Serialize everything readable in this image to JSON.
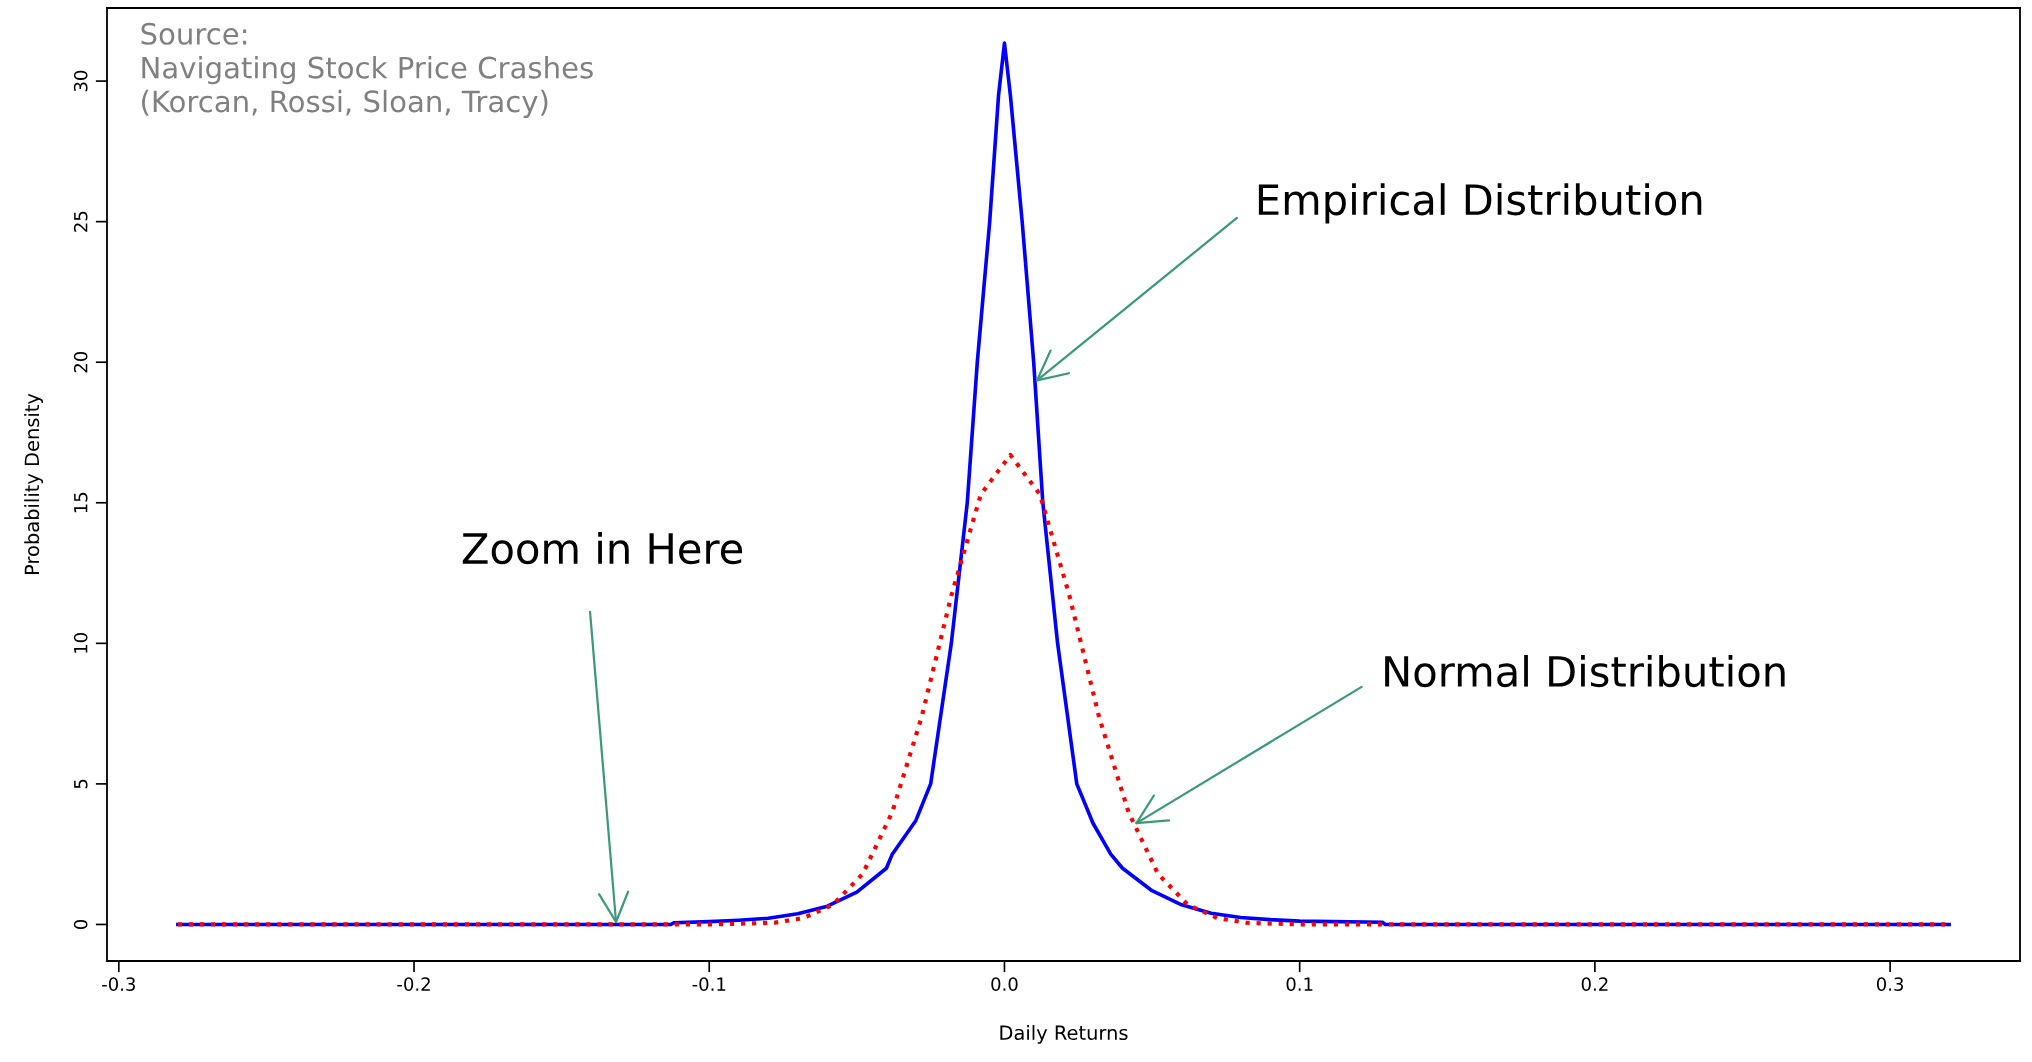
{
  "chart_data": {
    "type": "line",
    "xlabel": "Daily Returns",
    "ylabel": "Probability Density",
    "xlim": [
      -0.304,
      0.344
    ],
    "ylim": [
      -1.3,
      32.6
    ],
    "xticks": [
      -0.3,
      -0.2,
      -0.1,
      {
        "value": 0,
        "label": "0.0"
      },
      0.1,
      0.2,
      0.3
    ],
    "yticks": [
      0,
      5,
      10,
      15,
      20,
      25,
      30
    ],
    "grid": false,
    "series": [
      {
        "color": "#0000ff",
        "line_style": "solid",
        "x": [
          -0.28,
          -0.113,
          -0.112,
          -0.1,
          -0.09,
          -0.08,
          -0.07,
          -0.06,
          -0.05,
          -0.04,
          -0.038,
          -0.03,
          -0.025,
          -0.018,
          -0.0126,
          -0.0092,
          -0.005,
          -0.002,
          0.0,
          0.002,
          0.006,
          0.0099,
          0.013,
          0.018,
          0.0245,
          0.03,
          0.036,
          0.04,
          0.05,
          0.06,
          0.07,
          0.08,
          0.09,
          0.1,
          0.128,
          0.129,
          0.32
        ],
        "values": [
          0,
          0,
          0.06,
          0.1,
          0.15,
          0.22,
          0.38,
          0.65,
          1.15,
          2.0,
          2.5,
          3.7,
          5,
          10,
          15,
          20,
          25,
          29.5,
          31.35,
          29.5,
          25,
          20,
          15,
          10,
          5,
          3.6,
          2.5,
          2.0,
          1.2,
          0.7,
          0.4,
          0.25,
          0.17,
          0.12,
          0.08,
          0,
          0
        ]
      },
      {
        "color": "#ff0000",
        "line_style": "dotted",
        "x": [
          -0.28,
          -0.1,
          -0.078,
          -0.068,
          -0.058,
          -0.048,
          -0.038,
          -0.028,
          -0.018,
          -0.008,
          0.002,
          0.012,
          0.022,
          0.032,
          0.042,
          0.052,
          0.062,
          0.072,
          0.082,
          0.1,
          0.32
        ],
        "values": [
          0,
          0,
          0.06,
          0.23,
          0.71,
          1.8,
          4.0,
          7.4,
          11.7,
          15.3,
          16.7,
          15.3,
          11.7,
          7.4,
          4.0,
          1.8,
          0.71,
          0.23,
          0.06,
          0,
          0
        ]
      }
    ],
    "annotations": [
      "Source:\nNavigating Stock Price Crashes\n(Korcan, Rossi, Sloan, Tracy)",
      {
        "text": "Empirical Distribution",
        "x": 0.0104,
        "y": 19.3
      },
      {
        "text": "Normal Distribution",
        "x": 0.044,
        "y": 3.56
      },
      {
        "text": "Zoom in Here",
        "x": -0.1315,
        "y": 0
      }
    ]
  }
}
